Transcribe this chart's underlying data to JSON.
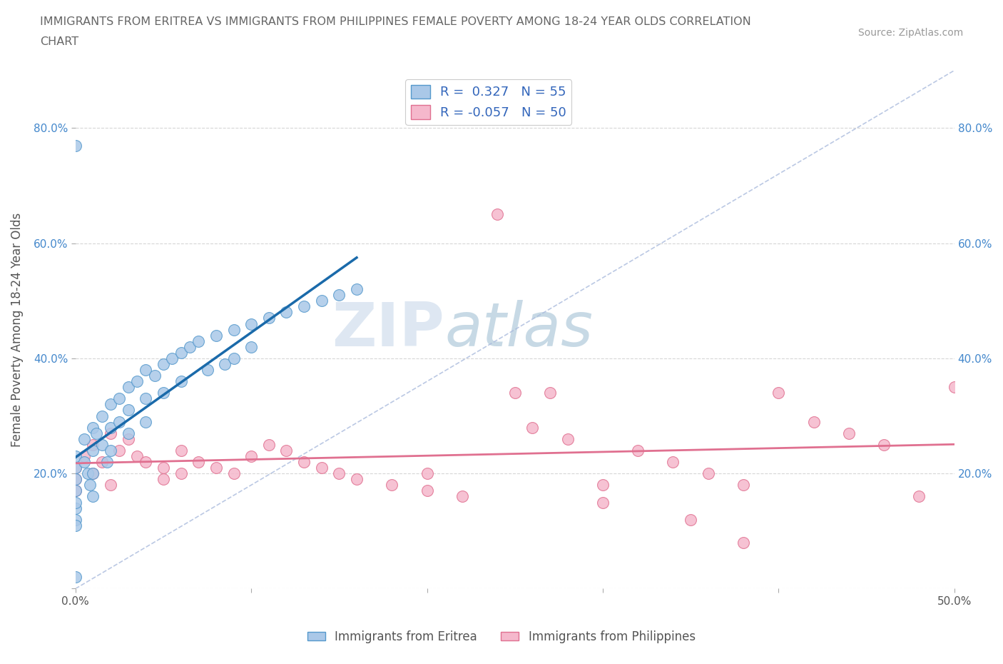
{
  "title_line1": "IMMIGRANTS FROM ERITREA VS IMMIGRANTS FROM PHILIPPINES FEMALE POVERTY AMONG 18-24 YEAR OLDS CORRELATION",
  "title_line2": "CHART",
  "source": "Source: ZipAtlas.com",
  "ylabel": "Female Poverty Among 18-24 Year Olds",
  "xlim": [
    0.0,
    0.5
  ],
  "ylim": [
    0.0,
    0.9
  ],
  "xticks": [
    0.0,
    0.1,
    0.2,
    0.3,
    0.4,
    0.5
  ],
  "yticks": [
    0.0,
    0.2,
    0.4,
    0.6,
    0.8
  ],
  "xticklabels": [
    "0.0%",
    "",
    "",
    "",
    "",
    "50.0%"
  ],
  "yticklabels": [
    "",
    "20.0%",
    "40.0%",
    "60.0%",
    "80.0%"
  ],
  "eritrea_color": "#aac8e8",
  "eritrea_edge": "#5599cc",
  "philippines_color": "#f5b8cc",
  "philippines_edge": "#e07090",
  "trend_eritrea_color": "#1a6aaa",
  "trend_philippines_color": "#e07090",
  "diagonal_color": "#aabbdd",
  "r_eritrea": 0.327,
  "n_eritrea": 55,
  "r_philippines": -0.057,
  "n_philippines": 50,
  "watermark_zip": "ZIP",
  "watermark_atlas": "atlas",
  "eritrea_x": [
    0.0,
    0.0,
    0.0,
    0.0,
    0.0,
    0.0,
    0.0,
    0.0,
    0.0,
    0.0,
    0.005,
    0.005,
    0.007,
    0.008,
    0.01,
    0.01,
    0.01,
    0.01,
    0.012,
    0.015,
    0.015,
    0.018,
    0.02,
    0.02,
    0.02,
    0.025,
    0.025,
    0.03,
    0.03,
    0.03,
    0.035,
    0.04,
    0.04,
    0.04,
    0.045,
    0.05,
    0.05,
    0.055,
    0.06,
    0.06,
    0.065,
    0.07,
    0.075,
    0.08,
    0.085,
    0.09,
    0.09,
    0.1,
    0.1,
    0.11,
    0.12,
    0.13,
    0.14,
    0.15,
    0.16
  ],
  "eritrea_y": [
    0.77,
    0.02,
    0.12,
    0.14,
    0.17,
    0.19,
    0.21,
    0.23,
    0.15,
    0.11,
    0.22,
    0.26,
    0.2,
    0.18,
    0.28,
    0.24,
    0.2,
    0.16,
    0.27,
    0.3,
    0.25,
    0.22,
    0.32,
    0.28,
    0.24,
    0.33,
    0.29,
    0.35,
    0.31,
    0.27,
    0.36,
    0.38,
    0.33,
    0.29,
    0.37,
    0.39,
    0.34,
    0.4,
    0.41,
    0.36,
    0.42,
    0.43,
    0.38,
    0.44,
    0.39,
    0.45,
    0.4,
    0.46,
    0.42,
    0.47,
    0.48,
    0.49,
    0.5,
    0.51,
    0.52
  ],
  "philippines_x": [
    0.0,
    0.0,
    0.0,
    0.005,
    0.01,
    0.01,
    0.015,
    0.02,
    0.02,
    0.025,
    0.03,
    0.035,
    0.04,
    0.05,
    0.05,
    0.06,
    0.06,
    0.07,
    0.08,
    0.09,
    0.1,
    0.11,
    0.12,
    0.13,
    0.14,
    0.15,
    0.16,
    0.18,
    0.2,
    0.22,
    0.24,
    0.26,
    0.27,
    0.28,
    0.3,
    0.3,
    0.32,
    0.34,
    0.36,
    0.38,
    0.4,
    0.42,
    0.44,
    0.46,
    0.48,
    0.5,
    0.25,
    0.2,
    0.35,
    0.38
  ],
  "philippines_y": [
    0.17,
    0.21,
    0.19,
    0.23,
    0.2,
    0.25,
    0.22,
    0.27,
    0.18,
    0.24,
    0.26,
    0.23,
    0.22,
    0.21,
    0.19,
    0.24,
    0.2,
    0.22,
    0.21,
    0.2,
    0.23,
    0.25,
    0.24,
    0.22,
    0.21,
    0.2,
    0.19,
    0.18,
    0.17,
    0.16,
    0.65,
    0.28,
    0.34,
    0.26,
    0.18,
    0.15,
    0.24,
    0.22,
    0.2,
    0.18,
    0.34,
    0.29,
    0.27,
    0.25,
    0.16,
    0.35,
    0.34,
    0.2,
    0.12,
    0.08
  ]
}
